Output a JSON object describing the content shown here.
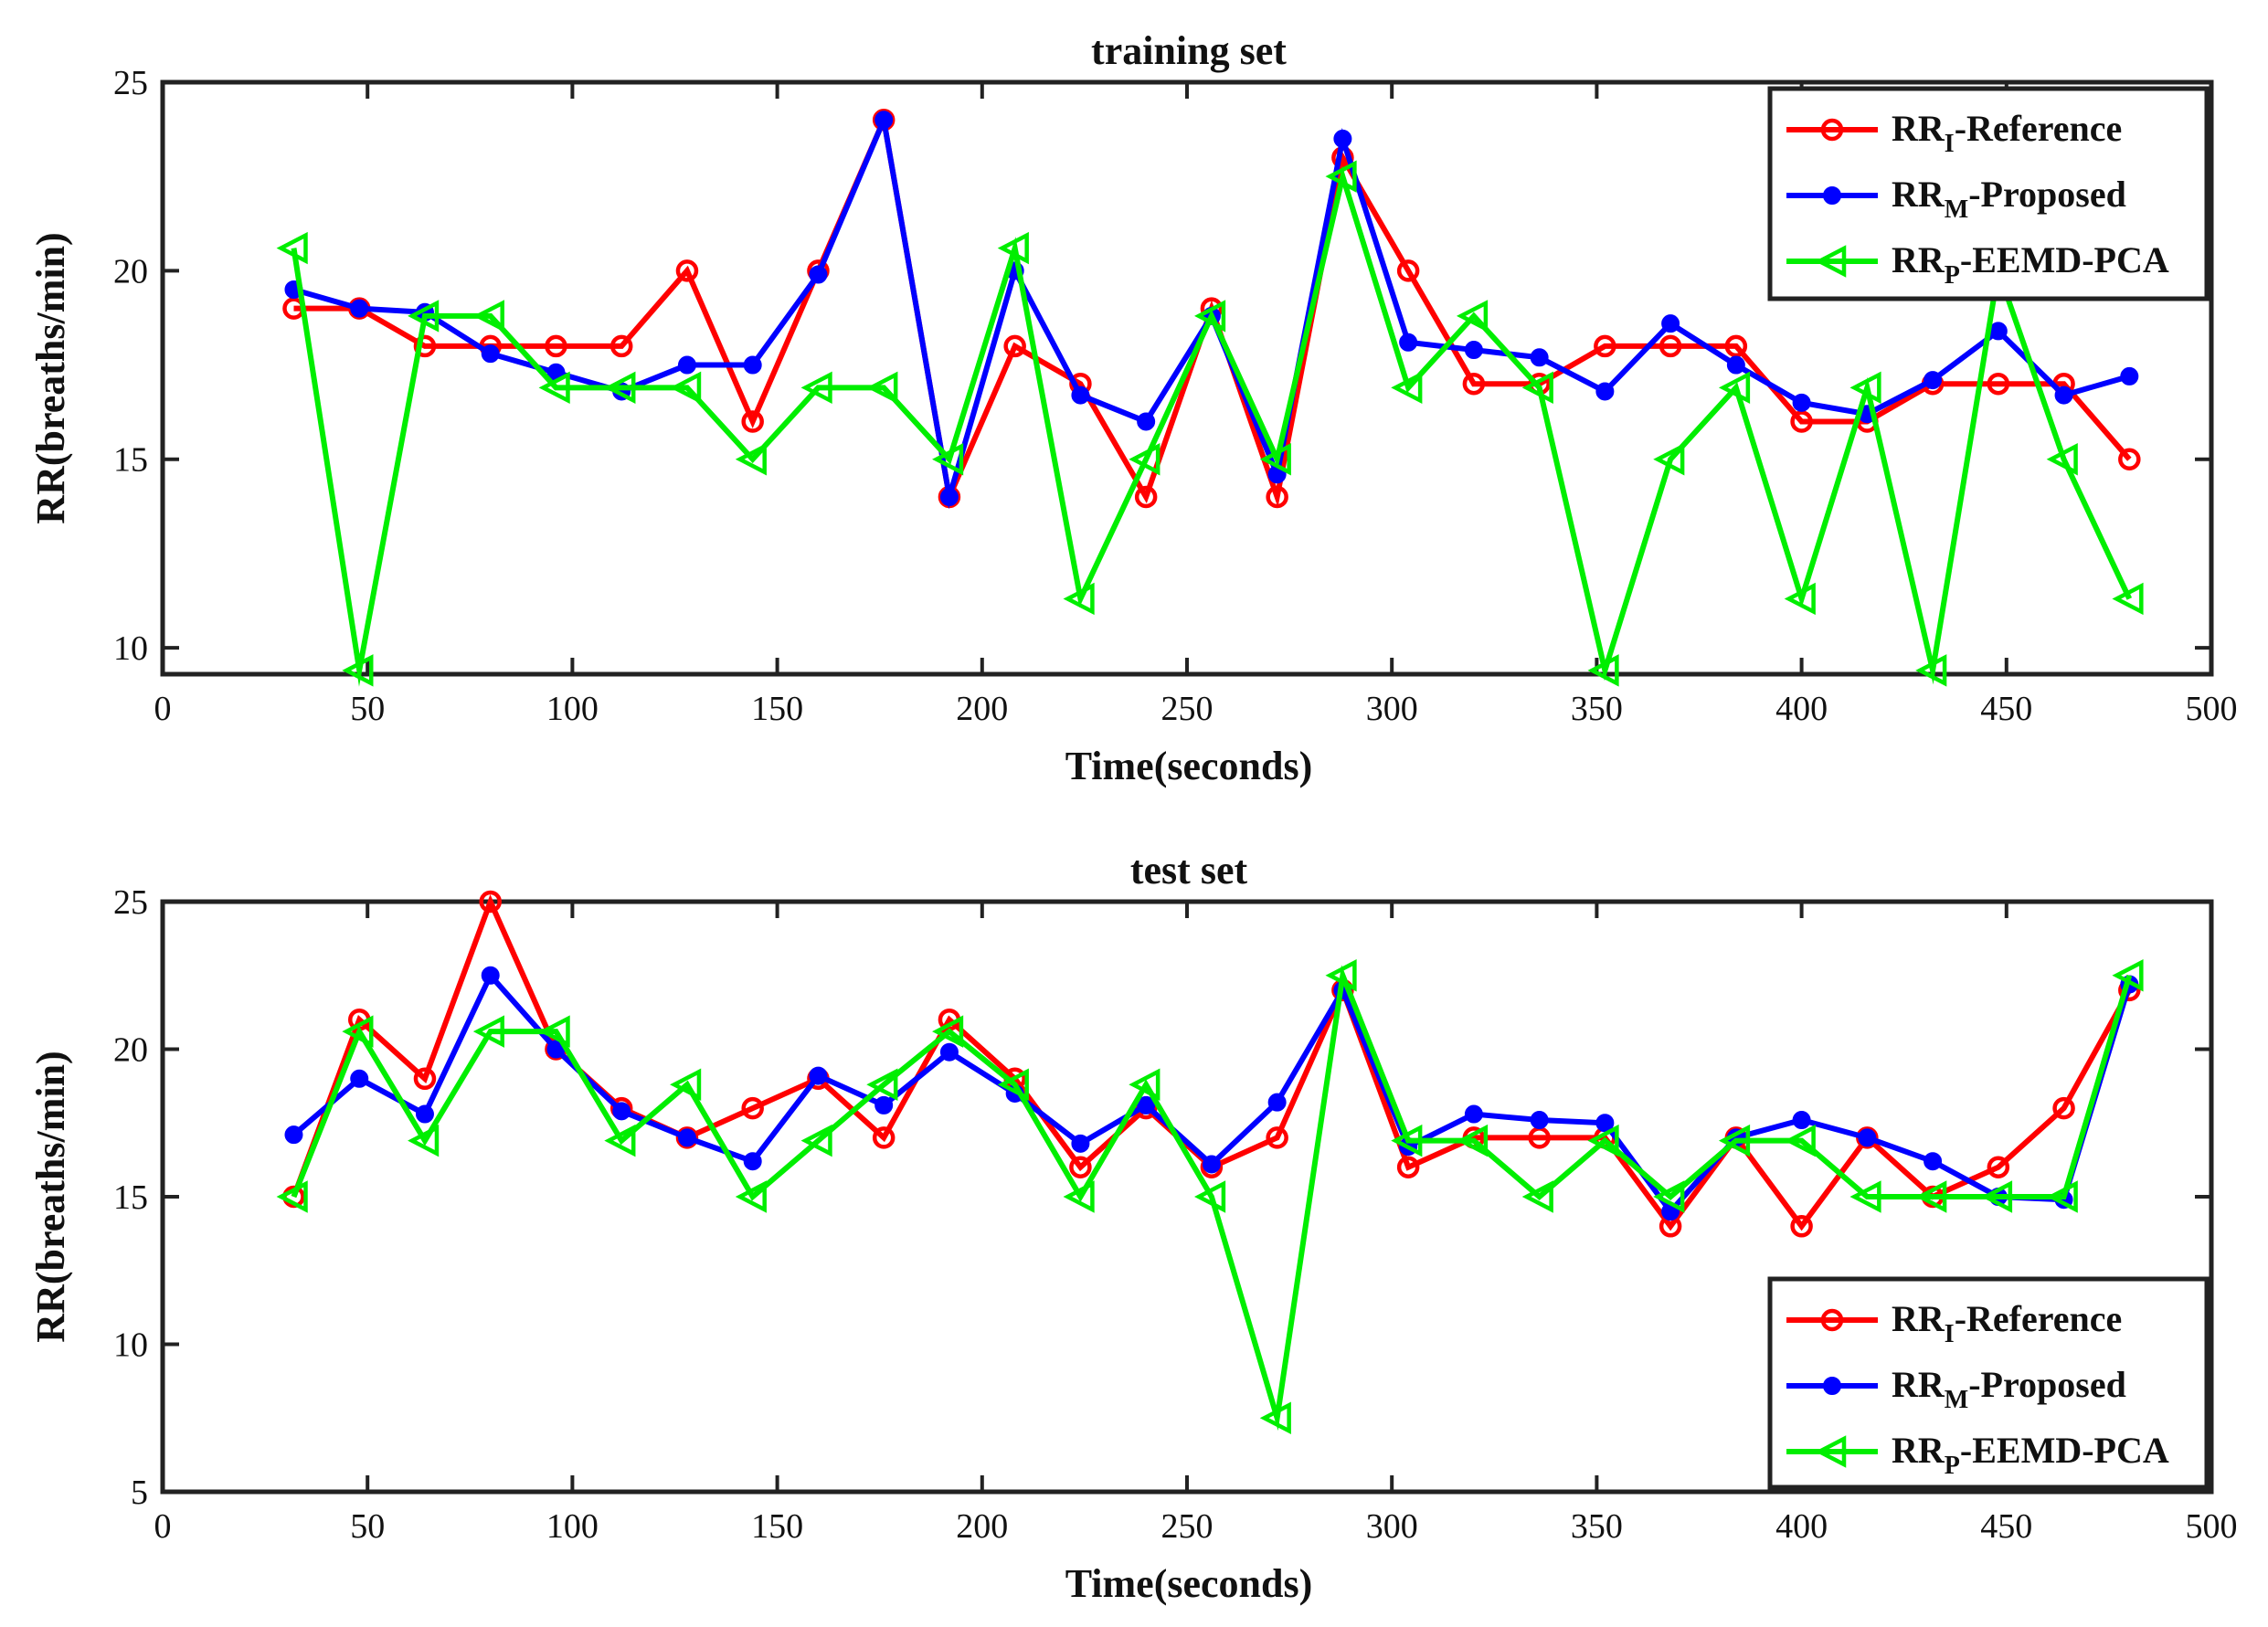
{
  "chart_data": [
    {
      "type": "line",
      "title": "training set",
      "xlabel": "Time(seconds)",
      "ylabel": "RR(breaths/min)",
      "xlim": [
        0,
        500
      ],
      "ylim": [
        9.3,
        25
      ],
      "xticks": [
        0,
        50,
        100,
        150,
        200,
        250,
        300,
        350,
        400,
        450,
        500
      ],
      "yticks": [
        10,
        15,
        20,
        25
      ],
      "legend_position": "top-right",
      "x": [
        32,
        48,
        64,
        80,
        96,
        112,
        128,
        144,
        160,
        176,
        192,
        208,
        224,
        240,
        256,
        272,
        288,
        304,
        320,
        336,
        352,
        368,
        384,
        400,
        416,
        432,
        448,
        464,
        480
      ],
      "series": [
        {
          "name": "RR_I-Reference",
          "label_main": "RR",
          "label_sub": "I",
          "label_rest": "-Reference",
          "color": "#ff0000",
          "marker": "circle",
          "values": [
            19,
            19,
            18,
            18,
            18,
            18,
            20,
            16,
            20,
            24,
            14,
            18,
            17,
            14,
            19,
            14,
            23,
            20,
            17,
            17,
            18,
            18,
            18,
            16,
            16,
            17,
            17,
            17,
            15
          ]
        },
        {
          "name": "RR_M-Proposed",
          "label_main": "RR",
          "label_sub": "M",
          "label_rest": "-Proposed",
          "color": "#0000ff",
          "marker": "dot",
          "values": [
            19.5,
            19,
            18.9,
            17.8,
            17.3,
            16.8,
            17.5,
            17.5,
            19.9,
            24,
            14,
            20,
            16.7,
            16,
            18.8,
            14.6,
            23.5,
            18.1,
            17.9,
            17.7,
            16.8,
            18.6,
            17.5,
            16.5,
            16.2,
            17.1,
            18.4,
            16.7,
            17.2
          ]
        },
        {
          "name": "RR_P-EEMD-PCA",
          "label_main": "RR",
          "label_sub": "P",
          "label_rest": "-EEMD-PCA",
          "color": "#00ee00",
          "marker": "triangle-left",
          "values": [
            20.6,
            9.4,
            18.8,
            18.8,
            16.9,
            16.9,
            16.9,
            15,
            16.9,
            16.9,
            15,
            20.6,
            11.3,
            15,
            18.8,
            15,
            22.5,
            16.9,
            18.8,
            16.9,
            9.4,
            15,
            16.9,
            11.3,
            16.9,
            9.4,
            20,
            15,
            11.3
          ]
        }
      ]
    },
    {
      "type": "line",
      "title": "test set",
      "xlabel": "Time(seconds)",
      "ylabel": "RR(breaths/min)",
      "xlim": [
        0,
        500
      ],
      "ylim": [
        5,
        25
      ],
      "xticks": [
        0,
        50,
        100,
        150,
        200,
        250,
        300,
        350,
        400,
        450,
        500
      ],
      "yticks": [
        5,
        10,
        15,
        20,
        25
      ],
      "legend_position": "bottom-right",
      "x": [
        32,
        48,
        64,
        80,
        96,
        112,
        128,
        144,
        160,
        176,
        192,
        208,
        224,
        240,
        256,
        272,
        288,
        304,
        320,
        336,
        352,
        368,
        384,
        400,
        416,
        432,
        448,
        464,
        480
      ],
      "series": [
        {
          "name": "RR_I-Reference",
          "label_main": "RR",
          "label_sub": "I",
          "label_rest": "-Reference",
          "color": "#ff0000",
          "marker": "circle",
          "values": [
            15,
            21,
            19,
            25,
            20,
            18,
            17,
            18,
            19,
            17,
            21,
            19,
            16,
            18,
            16,
            17,
            22,
            16,
            17,
            17,
            17,
            14,
            17,
            14,
            17,
            15,
            16,
            18,
            22
          ]
        },
        {
          "name": "RR_M-Proposed",
          "label_main": "RR",
          "label_sub": "M",
          "label_rest": "-Proposed",
          "color": "#0000ff",
          "marker": "dot",
          "values": [
            17.1,
            19,
            17.8,
            22.5,
            20,
            17.9,
            17,
            16.2,
            19.1,
            18.1,
            19.9,
            18.5,
            16.8,
            18.1,
            16.1,
            18.2,
            22,
            16.7,
            17.8,
            17.6,
            17.5,
            14.5,
            17,
            17.6,
            17,
            16.2,
            15,
            14.9,
            22.2
          ]
        },
        {
          "name": "RR_P-EEMD-PCA",
          "label_main": "RR",
          "label_sub": "P",
          "label_rest": "-EEMD-PCA",
          "color": "#00ee00",
          "marker": "triangle-left",
          "values": [
            15,
            20.6,
            16.9,
            20.6,
            20.6,
            16.9,
            18.8,
            15,
            16.9,
            18.8,
            20.6,
            18.8,
            15,
            18.8,
            15,
            7.5,
            22.5,
            16.9,
            16.9,
            15,
            16.9,
            15,
            16.9,
            16.9,
            15,
            15,
            15,
            15,
            22.5
          ]
        }
      ]
    }
  ]
}
